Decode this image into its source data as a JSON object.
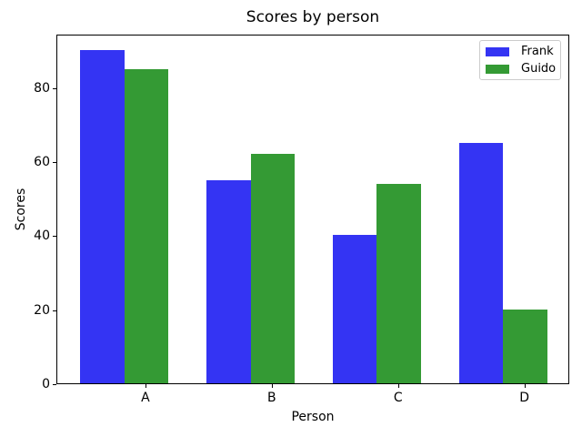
{
  "chart_data": {
    "type": "bar",
    "title": "Scores by person",
    "xlabel": "Person",
    "ylabel": "Scores",
    "categories": [
      "A",
      "B",
      "C",
      "D"
    ],
    "series": [
      {
        "name": "Frank",
        "color": "#3434f3",
        "values": [
          90,
          55,
          40,
          65
        ]
      },
      {
        "name": "Guido",
        "color": "#349a34",
        "values": [
          85,
          62,
          54,
          20
        ]
      }
    ],
    "yticks": [
      0,
      20,
      40,
      60,
      80
    ],
    "ylim": [
      0,
      94.5
    ],
    "xlim": [
      -0.355,
      3.705
    ],
    "bar_width_units": 0.35,
    "grid": false,
    "legend_position": "upper right"
  }
}
